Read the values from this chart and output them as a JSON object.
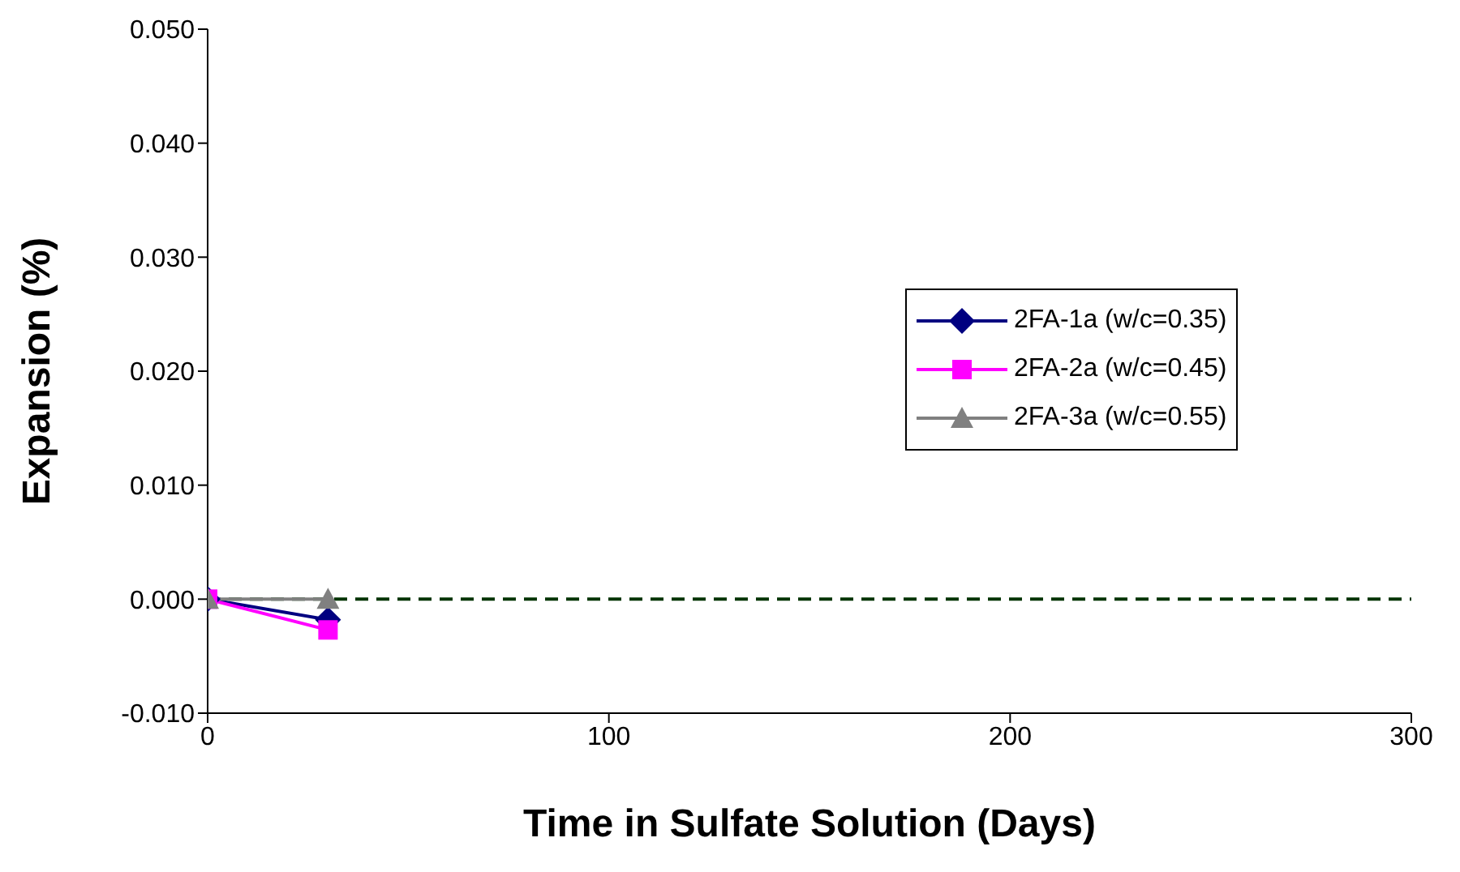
{
  "chart_data": {
    "type": "line",
    "xlabel": "Time in Sulfate Solution (Days)",
    "ylabel": "Expansion (%)",
    "x": [
      0,
      30
    ],
    "series": [
      {
        "name": "2FA-1a (w/c=0.35)",
        "color": "#000080",
        "marker": "diamond",
        "values": [
          0,
          -0.0018
        ]
      },
      {
        "name": "2FA-2a (w/c=0.45)",
        "color": "#ff00ff",
        "marker": "square",
        "values": [
          0,
          -0.0027
        ]
      },
      {
        "name": "2FA-3a (w/c=0.55)",
        "color": "#808080",
        "marker": "triangle",
        "values": [
          0,
          0
        ]
      }
    ],
    "xlim": [
      0,
      300
    ],
    "xticks": [
      0,
      100,
      200,
      300
    ],
    "ylim": [
      -0.01,
      0.05
    ],
    "yticks": [
      {
        "value": -0.01,
        "label": "-0.010"
      },
      {
        "value": 0,
        "label": "0.000"
      },
      {
        "value": 0.01,
        "label": "0.010"
      },
      {
        "value": 0.02,
        "label": "0.020"
      },
      {
        "value": 0.03,
        "label": "0.030"
      },
      {
        "value": 0.04,
        "label": "0.040"
      },
      {
        "value": 0.05,
        "label": "0.050"
      }
    ],
    "ref_lines": [
      {
        "axis": "y",
        "value": 0,
        "color": "#003300",
        "line_style": "dashed"
      }
    ],
    "legend": "right",
    "grid": false
  }
}
